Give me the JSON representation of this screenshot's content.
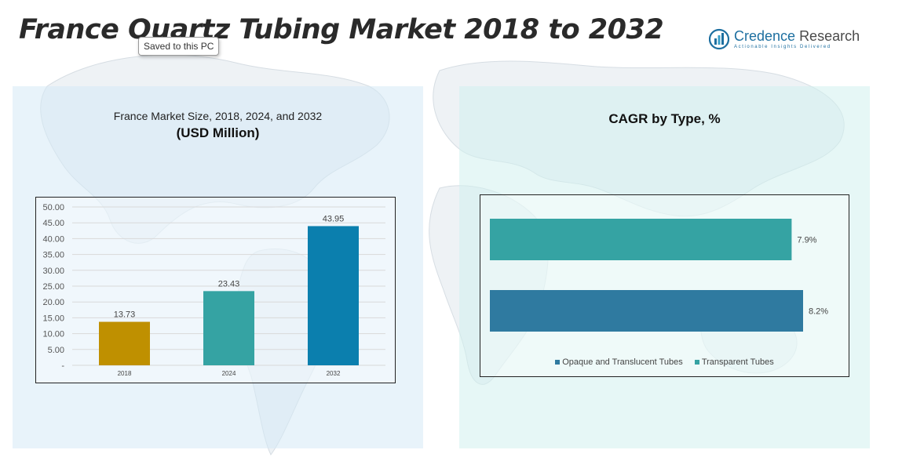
{
  "header": {
    "title": "France Quartz Tubing Market 2018 to 2032",
    "tooltip": "Saved to this PC"
  },
  "logo": {
    "name_part1": "Credence",
    "name_part2": "Research",
    "tagline": "Actionable Insights Delivered",
    "icon": "bar-chart-logo-icon"
  },
  "left_panel": {
    "subtitle": "France Market Size, 2018, 2024, and 2032",
    "unit": "(USD Million)"
  },
  "right_panel": {
    "title": "CAGR by Type, %"
  },
  "colors": {
    "bar_2018": "#bf9000",
    "bar_2024": "#35a3a3",
    "bar_2032": "#0b7fae",
    "transparent_tubes": "#35a3a3",
    "opaque_tubes": "#2f7aa0"
  },
  "chart_data": [
    {
      "type": "bar",
      "categories": [
        "2018",
        "2024",
        "2032"
      ],
      "values": [
        13.73,
        23.43,
        43.95
      ],
      "data_labels": [
        "13.73",
        "23.43",
        "43.95"
      ],
      "y_ticks": [
        "-",
        "5.00",
        "10.00",
        "15.00",
        "20.00",
        "25.00",
        "30.00",
        "35.00",
        "40.00",
        "45.00",
        "50.00"
      ],
      "ylim": [
        0,
        50
      ],
      "grid": true
    },
    {
      "type": "bar",
      "orientation": "horizontal",
      "series": [
        {
          "name": "Transparent Tubes",
          "value": 7.9,
          "label": "7.9%"
        },
        {
          "name": "Opaque and Translucent Tubes",
          "value": 8.2,
          "label": "8.2%"
        }
      ],
      "legend": [
        "Opaque and Translucent Tubes",
        "Transparent Tubes"
      ],
      "legend_position": "bottom",
      "grid": false
    }
  ]
}
